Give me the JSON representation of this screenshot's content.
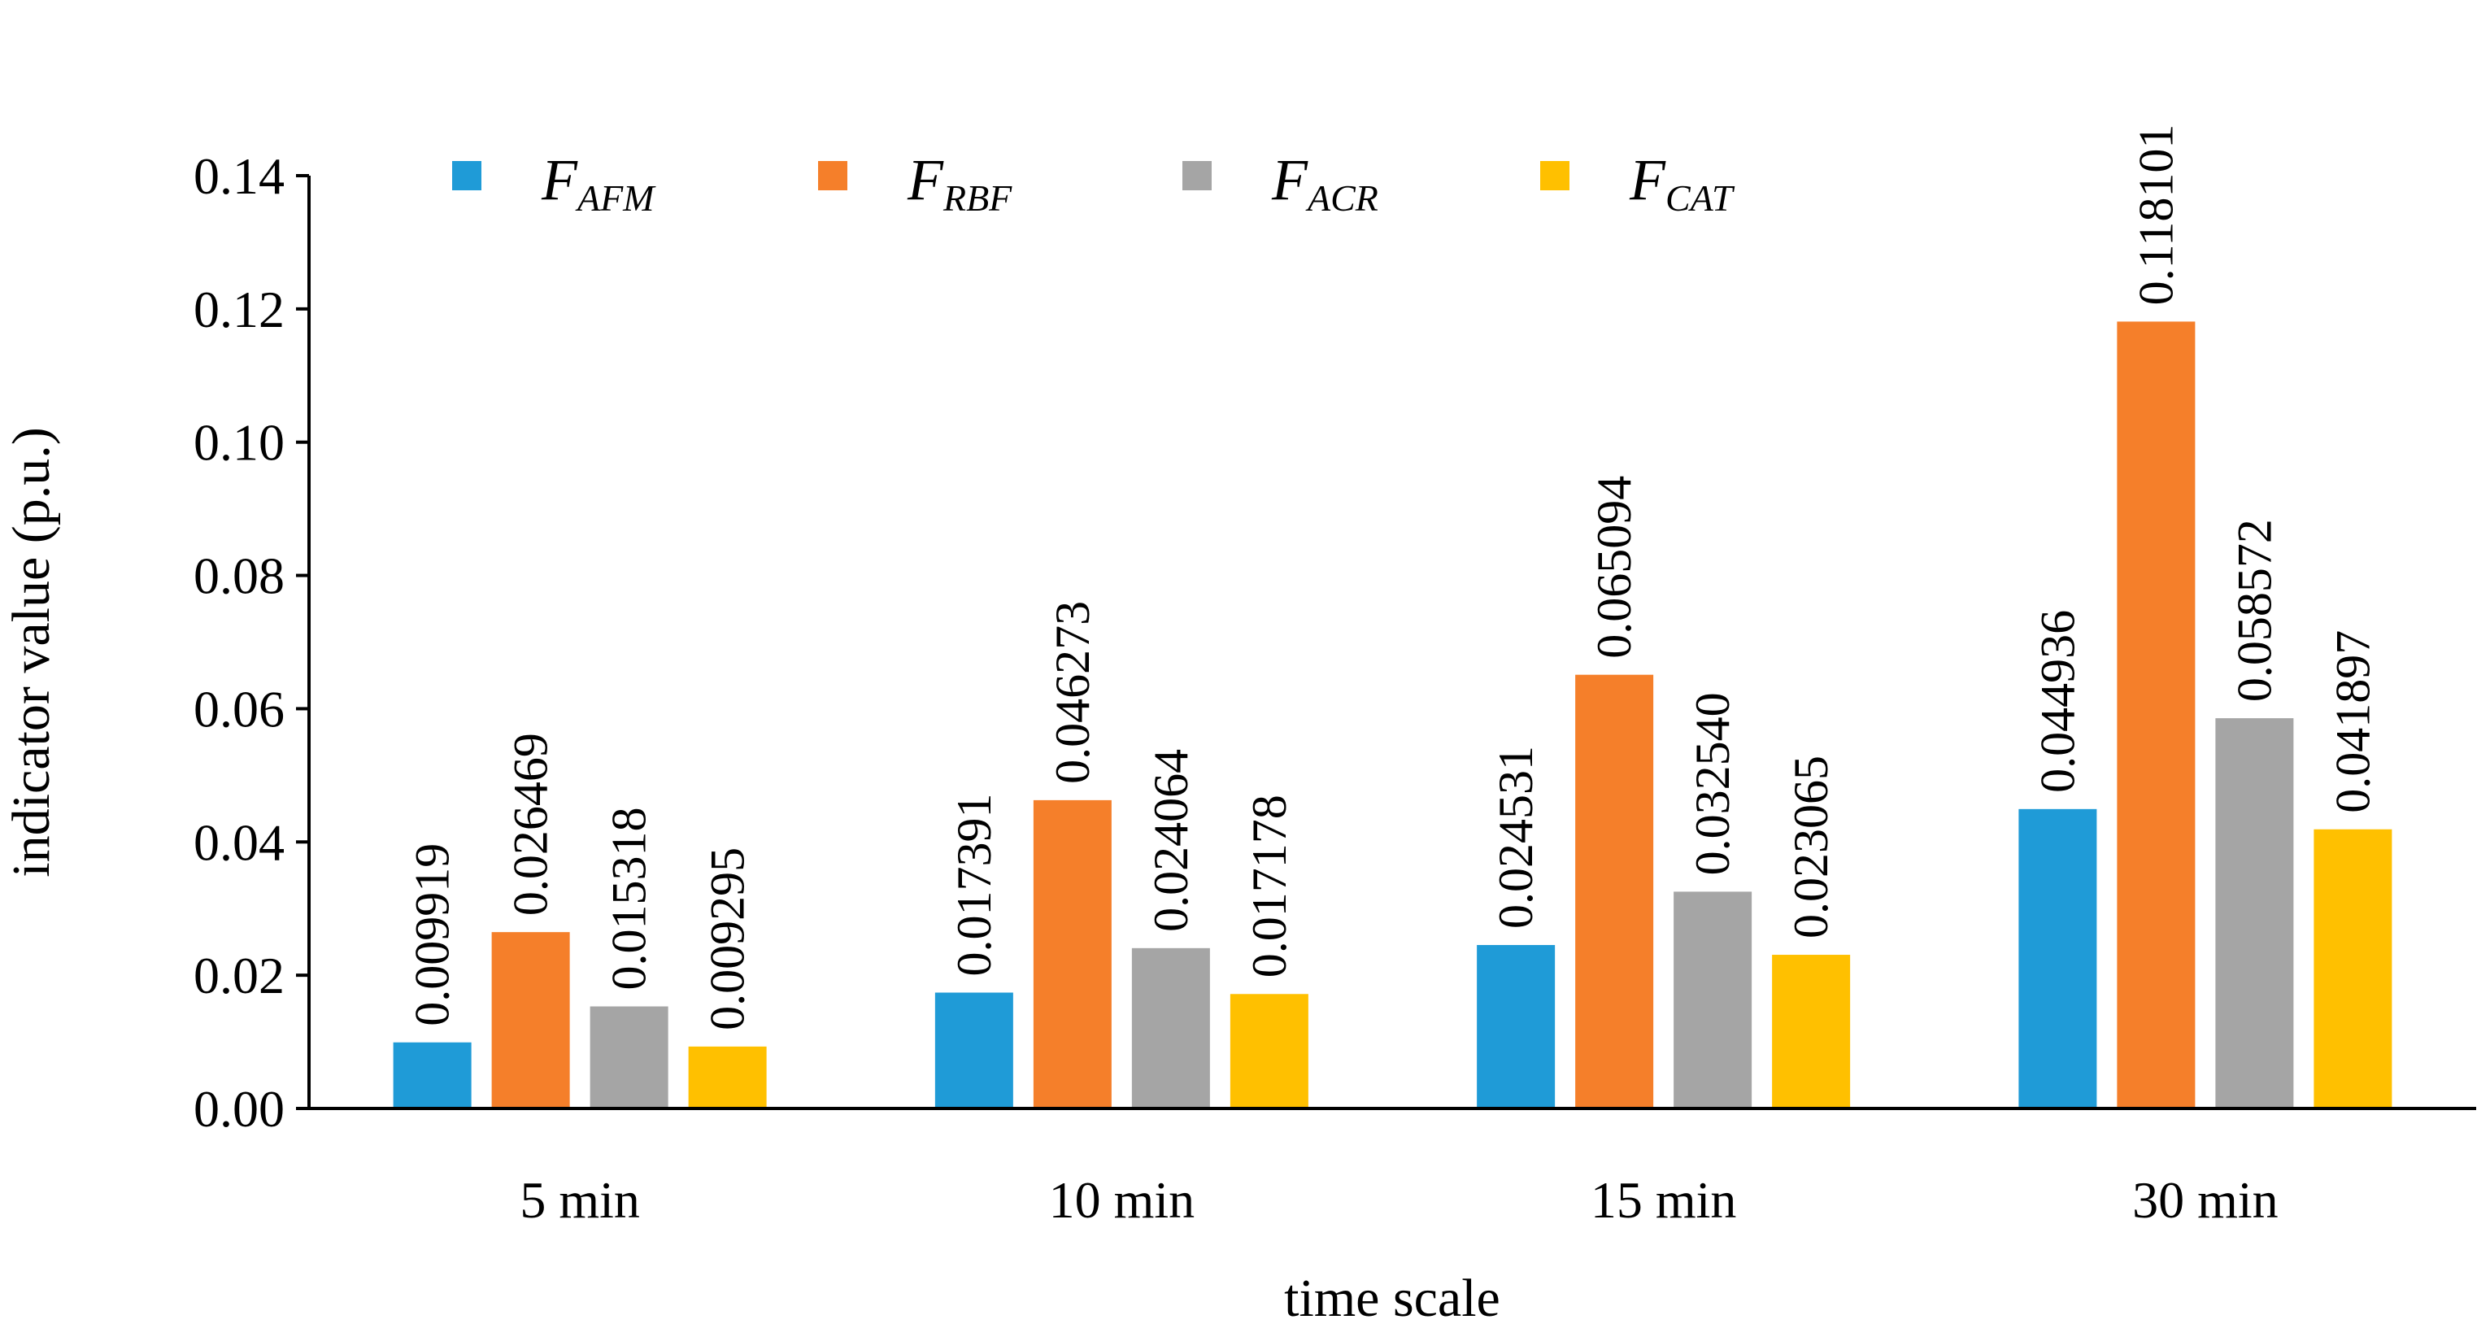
{
  "chart_data": {
    "type": "bar",
    "title": "",
    "xlabel": "time scale",
    "ylabel": "indicator value (p.u.)",
    "categories": [
      "5 min",
      "10 min",
      "15 min",
      "30 min"
    ],
    "ylim": [
      0,
      0.14
    ],
    "yticks": [
      "0.00",
      "0.02",
      "0.04",
      "0.06",
      "0.08",
      "0.10",
      "0.12",
      "0.14"
    ],
    "grid": false,
    "legend_position": "top",
    "series": [
      {
        "name": "F_AFM",
        "legend_main": "F",
        "legend_sub": "AFM",
        "color": "#1F9BD7",
        "values": [
          0.009919,
          0.017391,
          0.024531,
          0.044936
        ],
        "labels": [
          "0.009919",
          "0.017391",
          "0.024531",
          "0.044936"
        ]
      },
      {
        "name": "F_RBF",
        "legend_main": "F",
        "legend_sub": "RBF",
        "color": "#F57F2A",
        "values": [
          0.026469,
          0.046273,
          0.065094,
          0.118101
        ],
        "labels": [
          "0.026469",
          "0.046273",
          "0.065094",
          "0.118101"
        ]
      },
      {
        "name": "F_ACR",
        "legend_main": "F",
        "legend_sub": "ACR",
        "color": "#A5A5A5",
        "values": [
          0.015318,
          0.024064,
          0.03254,
          0.058572
        ],
        "labels": [
          "0.015318",
          "0.024064",
          "0.032540",
          "0.058572"
        ]
      },
      {
        "name": "F_CAT",
        "legend_main": "F",
        "legend_sub": "CAT",
        "color": "#FFC000",
        "values": [
          0.009295,
          0.017178,
          0.023065,
          0.041897
        ],
        "labels": [
          "0.009295",
          "0.017178",
          "0.023065",
          "0.041897"
        ]
      }
    ]
  }
}
